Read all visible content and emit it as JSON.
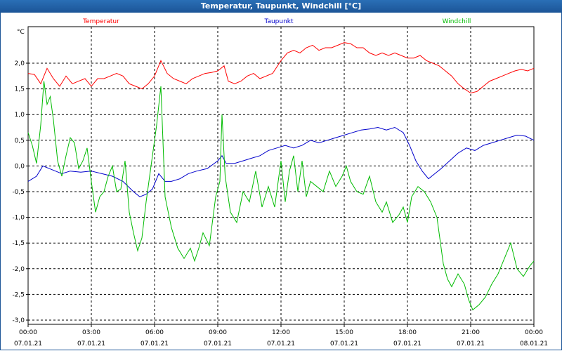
{
  "window": {
    "title": "Temperatur, Taupunkt, Windchill [°C]"
  },
  "chart_data": {
    "type": "line",
    "title": "Temperatur, Taupunkt, Windchill [°C]",
    "ylabel": "°C",
    "ylim": [
      -3.0,
      2.8
    ],
    "xlim": [
      0,
      24
    ],
    "grid": true,
    "y_ticks": [
      "2,0",
      "1,5",
      "1,0",
      "0,5",
      "0,0",
      "-0,5",
      "-1,0",
      "-1,5",
      "-2,0",
      "-2,5",
      "-3,0"
    ],
    "y_tick_values": [
      2.0,
      1.5,
      1.0,
      0.5,
      0.0,
      -0.5,
      -1.0,
      -1.5,
      -2.0,
      -2.5,
      -3.0
    ],
    "x_ticks": [
      {
        "time": "00:00",
        "date": "07.01.21",
        "hour": 0
      },
      {
        "time": "03:00",
        "date": "07.01.21",
        "hour": 3
      },
      {
        "time": "06:00",
        "date": "07.01.21",
        "hour": 6
      },
      {
        "time": "09:00",
        "date": "07.01.21",
        "hour": 9
      },
      {
        "time": "12:00",
        "date": "07.01.21",
        "hour": 12
      },
      {
        "time": "15:00",
        "date": "07.01.21",
        "hour": 15
      },
      {
        "time": "18:00",
        "date": "07.01.21",
        "hour": 18
      },
      {
        "time": "21:00",
        "date": "07.01.21",
        "hour": 21
      },
      {
        "time": "00:00",
        "date": "08.01.21",
        "hour": 24
      }
    ],
    "series": [
      {
        "name": "Temperatur",
        "color": "#ff0000",
        "points": [
          [
            0,
            1.8
          ],
          [
            0.3,
            1.78
          ],
          [
            0.6,
            1.6
          ],
          [
            0.9,
            1.9
          ],
          [
            1.2,
            1.7
          ],
          [
            1.5,
            1.55
          ],
          [
            1.8,
            1.75
          ],
          [
            2.1,
            1.6
          ],
          [
            2.4,
            1.65
          ],
          [
            2.7,
            1.7
          ],
          [
            3.0,
            1.55
          ],
          [
            3.3,
            1.7
          ],
          [
            3.6,
            1.7
          ],
          [
            3.9,
            1.75
          ],
          [
            4.2,
            1.8
          ],
          [
            4.5,
            1.75
          ],
          [
            4.8,
            1.6
          ],
          [
            5.1,
            1.55
          ],
          [
            5.4,
            1.5
          ],
          [
            5.7,
            1.6
          ],
          [
            6.0,
            1.75
          ],
          [
            6.3,
            2.05
          ],
          [
            6.6,
            1.8
          ],
          [
            6.9,
            1.7
          ],
          [
            7.2,
            1.65
          ],
          [
            7.5,
            1.6
          ],
          [
            7.8,
            1.7
          ],
          [
            8.1,
            1.75
          ],
          [
            8.4,
            1.8
          ],
          [
            8.7,
            1.82
          ],
          [
            9.0,
            1.85
          ],
          [
            9.3,
            1.95
          ],
          [
            9.5,
            1.65
          ],
          [
            9.8,
            1.6
          ],
          [
            10.1,
            1.65
          ],
          [
            10.4,
            1.75
          ],
          [
            10.7,
            1.8
          ],
          [
            11.0,
            1.7
          ],
          [
            11.3,
            1.75
          ],
          [
            11.6,
            1.8
          ],
          [
            12.0,
            2.05
          ],
          [
            12.3,
            2.2
          ],
          [
            12.6,
            2.25
          ],
          [
            12.9,
            2.2
          ],
          [
            13.2,
            2.3
          ],
          [
            13.5,
            2.35
          ],
          [
            13.8,
            2.25
          ],
          [
            14.1,
            2.3
          ],
          [
            14.4,
            2.3
          ],
          [
            14.7,
            2.35
          ],
          [
            15.0,
            2.4
          ],
          [
            15.3,
            2.38
          ],
          [
            15.6,
            2.3
          ],
          [
            15.9,
            2.3
          ],
          [
            16.2,
            2.2
          ],
          [
            16.5,
            2.15
          ],
          [
            16.8,
            2.2
          ],
          [
            17.1,
            2.15
          ],
          [
            17.4,
            2.2
          ],
          [
            17.7,
            2.15
          ],
          [
            18.0,
            2.1
          ],
          [
            18.3,
            2.1
          ],
          [
            18.6,
            2.15
          ],
          [
            18.9,
            2.05
          ],
          [
            19.2,
            2.0
          ],
          [
            19.5,
            1.95
          ],
          [
            19.8,
            1.85
          ],
          [
            20.1,
            1.75
          ],
          [
            20.4,
            1.6
          ],
          [
            20.7,
            1.5
          ],
          [
            21.0,
            1.42
          ],
          [
            21.3,
            1.45
          ],
          [
            21.6,
            1.55
          ],
          [
            21.9,
            1.65
          ],
          [
            22.2,
            1.7
          ],
          [
            22.5,
            1.75
          ],
          [
            22.8,
            1.8
          ],
          [
            23.1,
            1.85
          ],
          [
            23.4,
            1.88
          ],
          [
            23.7,
            1.85
          ],
          [
            24.0,
            1.9
          ]
        ]
      },
      {
        "name": "Taupunkt",
        "color": "#0000cc",
        "points": [
          [
            0,
            -0.3
          ],
          [
            0.4,
            -0.2
          ],
          [
            0.7,
            0.0
          ],
          [
            1.0,
            -0.05
          ],
          [
            1.3,
            -0.1
          ],
          [
            1.6,
            -0.15
          ],
          [
            2.0,
            -0.1
          ],
          [
            2.5,
            -0.12
          ],
          [
            3.0,
            -0.1
          ],
          [
            3.5,
            -0.15
          ],
          [
            4.0,
            -0.2
          ],
          [
            4.5,
            -0.3
          ],
          [
            5.0,
            -0.5
          ],
          [
            5.3,
            -0.6
          ],
          [
            5.6,
            -0.55
          ],
          [
            5.9,
            -0.45
          ],
          [
            6.2,
            -0.15
          ],
          [
            6.5,
            -0.3
          ],
          [
            6.8,
            -0.3
          ],
          [
            7.2,
            -0.25
          ],
          [
            7.6,
            -0.15
          ],
          [
            8.0,
            -0.1
          ],
          [
            8.5,
            -0.05
          ],
          [
            9.0,
            0.1
          ],
          [
            9.2,
            0.2
          ],
          [
            9.4,
            0.05
          ],
          [
            9.8,
            0.05
          ],
          [
            10.2,
            0.1
          ],
          [
            10.6,
            0.15
          ],
          [
            11.0,
            0.2
          ],
          [
            11.4,
            0.3
          ],
          [
            11.8,
            0.35
          ],
          [
            12.2,
            0.4
          ],
          [
            12.6,
            0.35
          ],
          [
            13.0,
            0.4
          ],
          [
            13.4,
            0.5
          ],
          [
            13.8,
            0.45
          ],
          [
            14.2,
            0.5
          ],
          [
            14.6,
            0.55
          ],
          [
            15.0,
            0.6
          ],
          [
            15.4,
            0.65
          ],
          [
            15.8,
            0.7
          ],
          [
            16.2,
            0.72
          ],
          [
            16.6,
            0.75
          ],
          [
            17.0,
            0.7
          ],
          [
            17.4,
            0.75
          ],
          [
            17.8,
            0.65
          ],
          [
            18.1,
            0.4
          ],
          [
            18.4,
            0.1
          ],
          [
            18.7,
            -0.1
          ],
          [
            19.0,
            -0.25
          ],
          [
            19.3,
            -0.15
          ],
          [
            19.6,
            -0.05
          ],
          [
            20.0,
            0.1
          ],
          [
            20.4,
            0.25
          ],
          [
            20.8,
            0.35
          ],
          [
            21.2,
            0.3
          ],
          [
            21.6,
            0.4
          ],
          [
            22.0,
            0.45
          ],
          [
            22.4,
            0.5
          ],
          [
            22.8,
            0.55
          ],
          [
            23.2,
            0.6
          ],
          [
            23.6,
            0.58
          ],
          [
            24.0,
            0.5
          ]
        ]
      },
      {
        "name": "Windchill",
        "color": "#00bb00",
        "points": [
          [
            0,
            0.65
          ],
          [
            0.2,
            0.4
          ],
          [
            0.4,
            0.05
          ],
          [
            0.6,
            0.8
          ],
          [
            0.75,
            1.65
          ],
          [
            0.9,
            1.2
          ],
          [
            1.05,
            1.35
          ],
          [
            1.2,
            0.9
          ],
          [
            1.4,
            0.1
          ],
          [
            1.6,
            -0.2
          ],
          [
            1.8,
            0.2
          ],
          [
            2.0,
            0.55
          ],
          [
            2.2,
            0.45
          ],
          [
            2.4,
            -0.05
          ],
          [
            2.6,
            0.1
          ],
          [
            2.8,
            0.35
          ],
          [
            3.0,
            -0.3
          ],
          [
            3.2,
            -0.9
          ],
          [
            3.4,
            -0.6
          ],
          [
            3.6,
            -0.5
          ],
          [
            3.8,
            -0.2
          ],
          [
            4.0,
            0.0
          ],
          [
            4.2,
            -0.5
          ],
          [
            4.4,
            -0.45
          ],
          [
            4.6,
            0.1
          ],
          [
            4.8,
            -0.9
          ],
          [
            5.0,
            -1.3
          ],
          [
            5.2,
            -1.65
          ],
          [
            5.4,
            -1.4
          ],
          [
            5.6,
            -0.7
          ],
          [
            5.8,
            -0.1
          ],
          [
            6.0,
            0.5
          ],
          [
            6.1,
            0.8
          ],
          [
            6.3,
            1.55
          ],
          [
            6.5,
            -0.6
          ],
          [
            6.8,
            -1.2
          ],
          [
            7.1,
            -1.6
          ],
          [
            7.4,
            -1.8
          ],
          [
            7.7,
            -1.6
          ],
          [
            7.9,
            -1.85
          ],
          [
            8.1,
            -1.6
          ],
          [
            8.3,
            -1.3
          ],
          [
            8.6,
            -1.55
          ],
          [
            8.9,
            -0.6
          ],
          [
            9.1,
            -0.3
          ],
          [
            9.2,
            1.0
          ],
          [
            9.35,
            -0.2
          ],
          [
            9.6,
            -0.9
          ],
          [
            9.9,
            -1.1
          ],
          [
            10.2,
            -0.5
          ],
          [
            10.5,
            -0.7
          ],
          [
            10.8,
            -0.1
          ],
          [
            11.1,
            -0.8
          ],
          [
            11.4,
            -0.4
          ],
          [
            11.7,
            -0.8
          ],
          [
            12.0,
            0.1
          ],
          [
            12.2,
            -0.7
          ],
          [
            12.4,
            -0.1
          ],
          [
            12.6,
            0.2
          ],
          [
            12.8,
            -0.5
          ],
          [
            13.0,
            0.1
          ],
          [
            13.2,
            -0.6
          ],
          [
            13.4,
            -0.3
          ],
          [
            13.7,
            -0.4
          ],
          [
            14.0,
            -0.5
          ],
          [
            14.3,
            -0.1
          ],
          [
            14.6,
            -0.4
          ],
          [
            14.9,
            -0.2
          ],
          [
            15.1,
            0.0
          ],
          [
            15.3,
            -0.3
          ],
          [
            15.6,
            -0.5
          ],
          [
            15.9,
            -0.55
          ],
          [
            16.2,
            -0.2
          ],
          [
            16.5,
            -0.7
          ],
          [
            16.8,
            -0.9
          ],
          [
            17.0,
            -0.7
          ],
          [
            17.3,
            -1.1
          ],
          [
            17.6,
            -0.95
          ],
          [
            17.8,
            -0.8
          ],
          [
            18.0,
            -1.1
          ],
          [
            18.2,
            -0.6
          ],
          [
            18.5,
            -0.4
          ],
          [
            18.8,
            -0.5
          ],
          [
            19.1,
            -0.7
          ],
          [
            19.4,
            -1.0
          ],
          [
            19.7,
            -1.9
          ],
          [
            19.9,
            -2.2
          ],
          [
            20.1,
            -2.35
          ],
          [
            20.4,
            -2.1
          ],
          [
            20.7,
            -2.3
          ],
          [
            20.9,
            -2.6
          ],
          [
            21.1,
            -2.8
          ],
          [
            21.4,
            -2.7
          ],
          [
            21.7,
            -2.55
          ],
          [
            22.0,
            -2.3
          ],
          [
            22.3,
            -2.1
          ],
          [
            22.6,
            -1.8
          ],
          [
            22.9,
            -1.5
          ],
          [
            23.2,
            -2.0
          ],
          [
            23.5,
            -2.15
          ],
          [
            23.8,
            -1.95
          ],
          [
            24.0,
            -1.85
          ]
        ]
      }
    ]
  }
}
